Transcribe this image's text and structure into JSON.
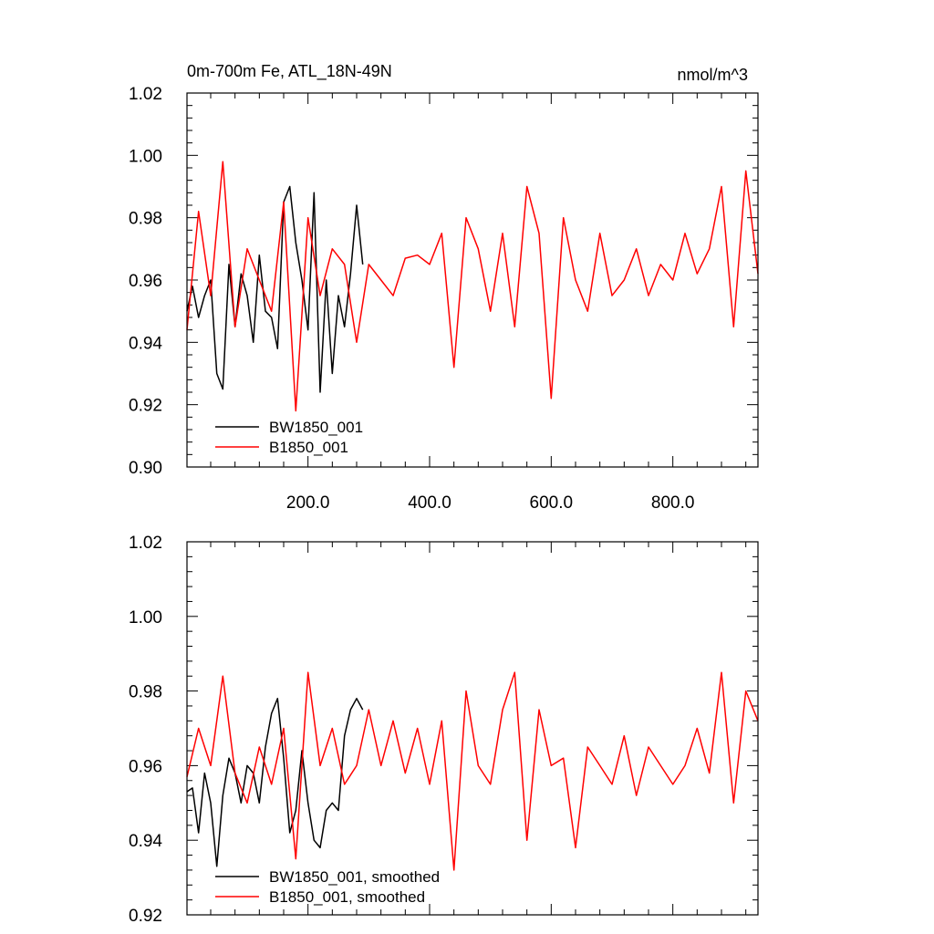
{
  "chart_data": [
    {
      "type": "line",
      "title": "0m-700m Fe, ATL_18N-49N",
      "units": "nmol/m^3",
      "xlim": [
        1,
        940
      ],
      "ylim": [
        0.9,
        1.02
      ],
      "x_ticks": [
        200,
        400,
        600,
        800
      ],
      "x_tick_labels": [
        "200.0",
        "400.0",
        "600.0",
        "800.0"
      ],
      "y_ticks": [
        0.9,
        0.92,
        0.94,
        0.96,
        0.98,
        1.0,
        1.02
      ],
      "y_tick_labels": [
        "0.90",
        "0.92",
        "0.94",
        "0.96",
        "0.98",
        "1.00",
        "1.02"
      ],
      "grid": false,
      "legend_position": "bottom-left",
      "series": [
        {
          "name": "BW1850_001",
          "color": "#000000",
          "x": [
            1,
            10,
            20,
            30,
            40,
            50,
            60,
            70,
            80,
            90,
            100,
            110,
            120,
            130,
            140,
            150,
            160,
            170,
            180,
            190,
            200,
            210,
            220,
            230,
            240,
            250,
            260,
            270,
            280,
            290
          ],
          "values": [
            0.95,
            0.958,
            0.948,
            0.955,
            0.96,
            0.93,
            0.925,
            0.965,
            0.945,
            0.962,
            0.955,
            0.94,
            0.968,
            0.95,
            0.948,
            0.938,
            0.985,
            0.99,
            0.972,
            0.96,
            0.944,
            0.988,
            0.924,
            0.96,
            0.93,
            0.955,
            0.945,
            0.962,
            0.984,
            0.965
          ]
        },
        {
          "name": "B1850_001",
          "color": "#ff0000",
          "x": [
            1,
            20,
            40,
            60,
            80,
            100,
            120,
            140,
            160,
            180,
            200,
            220,
            240,
            260,
            280,
            300,
            320,
            340,
            360,
            380,
            400,
            420,
            440,
            460,
            480,
            500,
            520,
            540,
            560,
            580,
            600,
            620,
            640,
            660,
            680,
            700,
            720,
            740,
            760,
            780,
            800,
            820,
            840,
            860,
            880,
            900,
            920,
            940
          ],
          "values": [
            0.944,
            0.982,
            0.955,
            0.998,
            0.945,
            0.97,
            0.96,
            0.95,
            0.985,
            0.918,
            0.98,
            0.955,
            0.97,
            0.965,
            0.94,
            0.965,
            0.96,
            0.955,
            0.967,
            0.968,
            0.965,
            0.975,
            0.932,
            0.98,
            0.97,
            0.95,
            0.975,
            0.945,
            0.99,
            0.975,
            0.922,
            0.98,
            0.96,
            0.95,
            0.975,
            0.955,
            0.96,
            0.97,
            0.955,
            0.965,
            0.96,
            0.975,
            0.962,
            0.97,
            0.99,
            0.945,
            0.995,
            0.962
          ]
        }
      ]
    },
    {
      "type": "line",
      "title": "",
      "xlim": [
        1,
        940
      ],
      "ylim": [
        0.92,
        1.02
      ],
      "y_ticks": [
        0.92,
        0.94,
        0.96,
        0.98,
        1.0,
        1.02
      ],
      "y_tick_labels": [
        "0.92",
        "0.94",
        "0.96",
        "0.98",
        "1.00",
        "1.02"
      ],
      "grid": false,
      "legend_position": "bottom-left",
      "series": [
        {
          "name": "BW1850_001, smoothed",
          "color": "#000000",
          "x": [
            1,
            10,
            20,
            30,
            40,
            50,
            60,
            70,
            80,
            90,
            100,
            110,
            120,
            130,
            140,
            150,
            160,
            170,
            180,
            190,
            200,
            210,
            220,
            230,
            240,
            250,
            260,
            270,
            280,
            290
          ],
          "values": [
            0.953,
            0.954,
            0.942,
            0.958,
            0.95,
            0.933,
            0.952,
            0.962,
            0.958,
            0.95,
            0.96,
            0.958,
            0.95,
            0.965,
            0.974,
            0.978,
            0.962,
            0.942,
            0.948,
            0.964,
            0.95,
            0.94,
            0.938,
            0.948,
            0.95,
            0.948,
            0.968,
            0.975,
            0.978,
            0.975
          ]
        },
        {
          "name": "B1850_001, smoothed",
          "color": "#ff0000",
          "x": [
            1,
            20,
            40,
            60,
            80,
            100,
            120,
            140,
            160,
            180,
            200,
            220,
            240,
            260,
            280,
            300,
            320,
            340,
            360,
            380,
            400,
            420,
            440,
            460,
            480,
            500,
            520,
            540,
            560,
            580,
            600,
            620,
            640,
            660,
            680,
            700,
            720,
            740,
            760,
            780,
            800,
            820,
            840,
            860,
            880,
            900,
            920,
            940
          ],
          "values": [
            0.957,
            0.97,
            0.96,
            0.984,
            0.958,
            0.95,
            0.965,
            0.955,
            0.97,
            0.935,
            0.985,
            0.96,
            0.97,
            0.955,
            0.96,
            0.975,
            0.96,
            0.972,
            0.958,
            0.97,
            0.955,
            0.972,
            0.932,
            0.98,
            0.96,
            0.955,
            0.975,
            0.985,
            0.94,
            0.975,
            0.96,
            0.962,
            0.938,
            0.965,
            0.96,
            0.955,
            0.968,
            0.952,
            0.965,
            0.96,
            0.955,
            0.96,
            0.97,
            0.958,
            0.985,
            0.95,
            0.98,
            0.972
          ]
        }
      ]
    }
  ]
}
